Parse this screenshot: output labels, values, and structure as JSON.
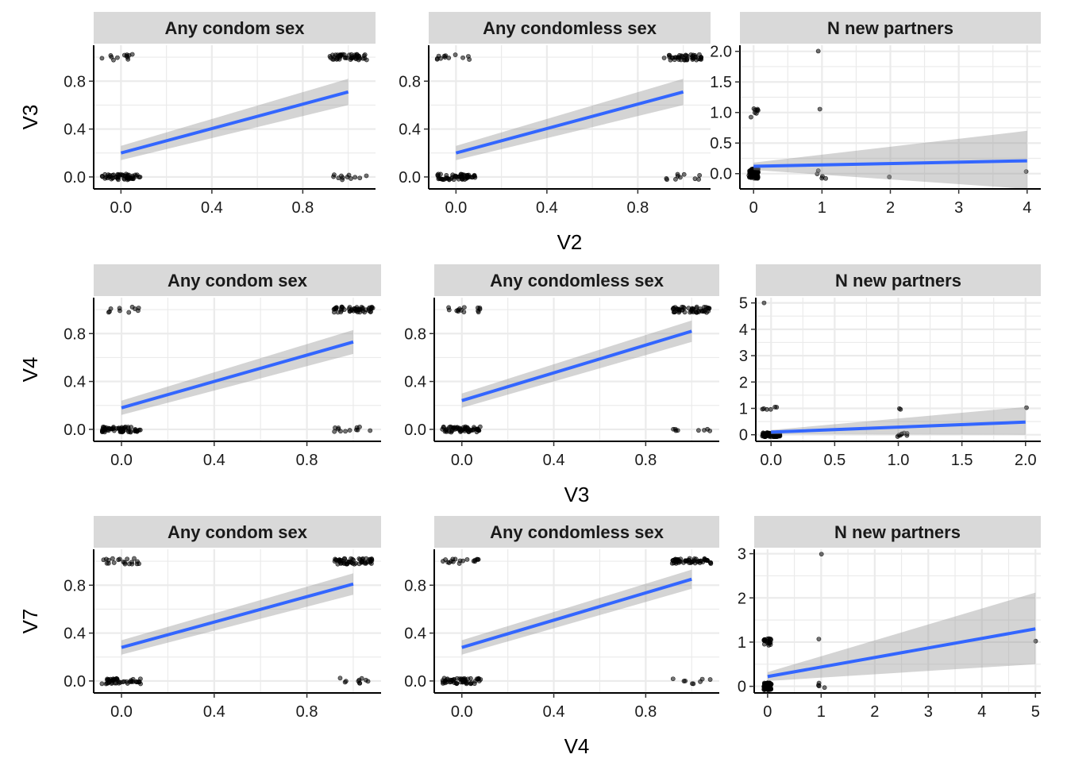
{
  "chart_data": {
    "type": "scatter",
    "layout": "3x3 faceted grid",
    "rows": [
      {
        "xlabel": "V2",
        "ylabel": "V3",
        "panels": [
          {
            "title": "Any condom sex",
            "xlim": [
              -0.12,
              1.12
            ],
            "ylim": [
              -0.1,
              1.1
            ],
            "xticks": [
              0.0,
              0.4,
              0.8
            ],
            "xtick_labels": [
              "0.0",
              "0.4",
              "0.8"
            ],
            "yticks": [
              0.0,
              0.4,
              0.8
            ],
            "ytick_labels": [
              "0.0",
              "0.4",
              "0.8"
            ],
            "fit": {
              "x": [
                0,
                1
              ],
              "y": [
                0.2,
                0.71
              ],
              "lower": [
                0.14,
                0.6
              ],
              "upper": [
                0.26,
                0.82
              ]
            },
            "clusters": [
              {
                "x": 0,
                "y": 0,
                "n": 55
              },
              {
                "x": 0,
                "y": 1,
                "n": 12
              },
              {
                "x": 1,
                "y": 0,
                "n": 12
              },
              {
                "x": 1,
                "y": 1,
                "n": 50
              }
            ]
          },
          {
            "title": "Any condomless sex",
            "xlim": [
              -0.12,
              1.12
            ],
            "ylim": [
              -0.1,
              1.1
            ],
            "xticks": [
              0.0,
              0.4,
              0.8
            ],
            "xtick_labels": [
              "0.0",
              "0.4",
              "0.8"
            ],
            "yticks": [
              0.0,
              0.4,
              0.8
            ],
            "ytick_labels": [
              "0.0",
              "0.4",
              "0.8"
            ],
            "fit": {
              "x": [
                0,
                1
              ],
              "y": [
                0.2,
                0.71
              ],
              "lower": [
                0.14,
                0.6
              ],
              "upper": [
                0.26,
                0.82
              ]
            },
            "clusters": [
              {
                "x": 0,
                "y": 0,
                "n": 55
              },
              {
                "x": 0,
                "y": 1,
                "n": 12
              },
              {
                "x": 1,
                "y": 0,
                "n": 10
              },
              {
                "x": 1,
                "y": 1,
                "n": 45
              }
            ]
          },
          {
            "title": "N new partners",
            "xlim": [
              -0.2,
              4.2
            ],
            "ylim": [
              -0.25,
              2.1
            ],
            "xticks": [
              0,
              1,
              2,
              3,
              4
            ],
            "xtick_labels": [
              "0",
              "1",
              "2",
              "3",
              "4"
            ],
            "yticks": [
              0.0,
              0.5,
              1.0,
              1.5,
              2.0
            ],
            "ytick_labels": [
              "0.0",
              "0.5",
              "1.0",
              "1.5",
              "2.0"
            ],
            "fit": {
              "x": [
                0,
                4
              ],
              "y": [
                0.12,
                0.21
              ],
              "lower": [
                0.06,
                -0.25
              ],
              "upper": [
                0.18,
                0.7
              ]
            },
            "clusters": [
              {
                "x": 0,
                "y": 0,
                "n": 90
              },
              {
                "x": 0,
                "y": 1,
                "n": 8
              },
              {
                "x": 1,
                "y": 0,
                "n": 5
              },
              {
                "x": 1,
                "y": 1,
                "n": 1
              },
              {
                "x": 1,
                "y": 2,
                "n": 1
              },
              {
                "x": 2,
                "y": 0,
                "n": 1
              },
              {
                "x": 4,
                "y": 0,
                "n": 1
              }
            ]
          }
        ]
      },
      {
        "xlabel": "V3",
        "ylabel": "V4",
        "panels": [
          {
            "title": "Any condom sex",
            "xlim": [
              -0.12,
              1.12
            ],
            "ylim": [
              -0.1,
              1.1
            ],
            "xticks": [
              0.0,
              0.4,
              0.8
            ],
            "xtick_labels": [
              "0.0",
              "0.4",
              "0.8"
            ],
            "yticks": [
              0.0,
              0.4,
              0.8
            ],
            "ytick_labels": [
              "0.0",
              "0.4",
              "0.8"
            ],
            "fit": {
              "x": [
                0,
                1
              ],
              "y": [
                0.18,
                0.73
              ],
              "lower": [
                0.12,
                0.63
              ],
              "upper": [
                0.24,
                0.83
              ]
            },
            "clusters": [
              {
                "x": 0,
                "y": 0,
                "n": 60
              },
              {
                "x": 0,
                "y": 1,
                "n": 10
              },
              {
                "x": 1,
                "y": 0,
                "n": 12
              },
              {
                "x": 1,
                "y": 1,
                "n": 50
              }
            ]
          },
          {
            "title": "Any condomless sex",
            "xlim": [
              -0.12,
              1.12
            ],
            "ylim": [
              -0.1,
              1.1
            ],
            "xticks": [
              0.0,
              0.4,
              0.8
            ],
            "xtick_labels": [
              "0.0",
              "0.4",
              "0.8"
            ],
            "yticks": [
              0.0,
              0.4,
              0.8
            ],
            "ytick_labels": [
              "0.0",
              "0.4",
              "0.8"
            ],
            "fit": {
              "x": [
                0,
                1
              ],
              "y": [
                0.24,
                0.82
              ],
              "lower": [
                0.18,
                0.73
              ],
              "upper": [
                0.3,
                0.91
              ]
            },
            "clusters": [
              {
                "x": 0,
                "y": 0,
                "n": 60
              },
              {
                "x": 0,
                "y": 1,
                "n": 14
              },
              {
                "x": 1,
                "y": 0,
                "n": 8
              },
              {
                "x": 1,
                "y": 1,
                "n": 50
              }
            ]
          },
          {
            "title": "N new partners",
            "xlim": [
              -0.12,
              2.12
            ],
            "ylim": [
              -0.25,
              5.2
            ],
            "xticks": [
              0.0,
              0.5,
              1.0,
              1.5,
              2.0
            ],
            "xtick_labels": [
              "0.0",
              "0.5",
              "1.0",
              "1.5",
              "2.0"
            ],
            "yticks": [
              0,
              1,
              2,
              3,
              4,
              5
            ],
            "ytick_labels": [
              "0",
              "1",
              "2",
              "3",
              "4",
              "5"
            ],
            "fit": {
              "x": [
                0,
                2
              ],
              "y": [
                0.1,
                0.48
              ],
              "lower": [
                0.02,
                0.0
              ],
              "upper": [
                0.18,
                1.05
              ]
            },
            "clusters": [
              {
                "x": 0,
                "y": 0,
                "n": 90
              },
              {
                "x": 0,
                "y": 1,
                "n": 6
              },
              {
                "x": 0,
                "y": 5,
                "n": 1
              },
              {
                "x": 1,
                "y": 0,
                "n": 8
              },
              {
                "x": 1,
                "y": 1,
                "n": 2
              },
              {
                "x": 2,
                "y": 1,
                "n": 1
              }
            ]
          }
        ]
      },
      {
        "xlabel": "V4",
        "ylabel": "V7",
        "panels": [
          {
            "title": "Any condom sex",
            "xlim": [
              -0.12,
              1.12
            ],
            "ylim": [
              -0.1,
              1.1
            ],
            "xticks": [
              0.0,
              0.4,
              0.8
            ],
            "xtick_labels": [
              "0.0",
              "0.4",
              "0.8"
            ],
            "yticks": [
              0.0,
              0.4,
              0.8
            ],
            "ytick_labels": [
              "0.0",
              "0.4",
              "0.8"
            ],
            "fit": {
              "x": [
                0,
                1
              ],
              "y": [
                0.28,
                0.81
              ],
              "lower": [
                0.22,
                0.72
              ],
              "upper": [
                0.34,
                0.9
              ]
            },
            "clusters": [
              {
                "x": 0,
                "y": 0,
                "n": 45
              },
              {
                "x": 0,
                "y": 1,
                "n": 20
              },
              {
                "x": 1,
                "y": 0,
                "n": 10
              },
              {
                "x": 1,
                "y": 1,
                "n": 55
              }
            ]
          },
          {
            "title": "Any condomless sex",
            "xlim": [
              -0.12,
              1.12
            ],
            "ylim": [
              -0.1,
              1.1
            ],
            "xticks": [
              0.0,
              0.4,
              0.8
            ],
            "xtick_labels": [
              "0.0",
              "0.4",
              "0.8"
            ],
            "yticks": [
              0.0,
              0.4,
              0.8
            ],
            "ytick_labels": [
              "0.0",
              "0.4",
              "0.8"
            ],
            "fit": {
              "x": [
                0,
                1
              ],
              "y": [
                0.28,
                0.85
              ],
              "lower": [
                0.22,
                0.77
              ],
              "upper": [
                0.34,
                0.93
              ]
            },
            "clusters": [
              {
                "x": 0,
                "y": 0,
                "n": 55
              },
              {
                "x": 0,
                "y": 1,
                "n": 18
              },
              {
                "x": 1,
                "y": 0,
                "n": 8
              },
              {
                "x": 1,
                "y": 1,
                "n": 55
              }
            ]
          },
          {
            "title": "N new partners",
            "xlim": [
              -0.25,
              5.1
            ],
            "ylim": [
              -0.15,
              3.1
            ],
            "xticks": [
              0,
              1,
              2,
              3,
              4,
              5
            ],
            "xtick_labels": [
              "0",
              "1",
              "2",
              "3",
              "4",
              "5"
            ],
            "yticks": [
              0,
              1,
              2,
              3
            ],
            "ytick_labels": [
              "0",
              "1",
              "2",
              "3"
            ],
            "fit": {
              "x": [
                0,
                5
              ],
              "y": [
                0.22,
                1.3
              ],
              "lower": [
                0.12,
                0.5
              ],
              "upper": [
                0.32,
                2.12
              ]
            },
            "clusters": [
              {
                "x": 0,
                "y": 0,
                "n": 90
              },
              {
                "x": 0,
                "y": 1,
                "n": 20
              },
              {
                "x": 1,
                "y": 0,
                "n": 4
              },
              {
                "x": 1,
                "y": 1,
                "n": 1
              },
              {
                "x": 1,
                "y": 3,
                "n": 1
              },
              {
                "x": 5,
                "y": 1,
                "n": 1
              }
            ]
          }
        ]
      }
    ]
  }
}
